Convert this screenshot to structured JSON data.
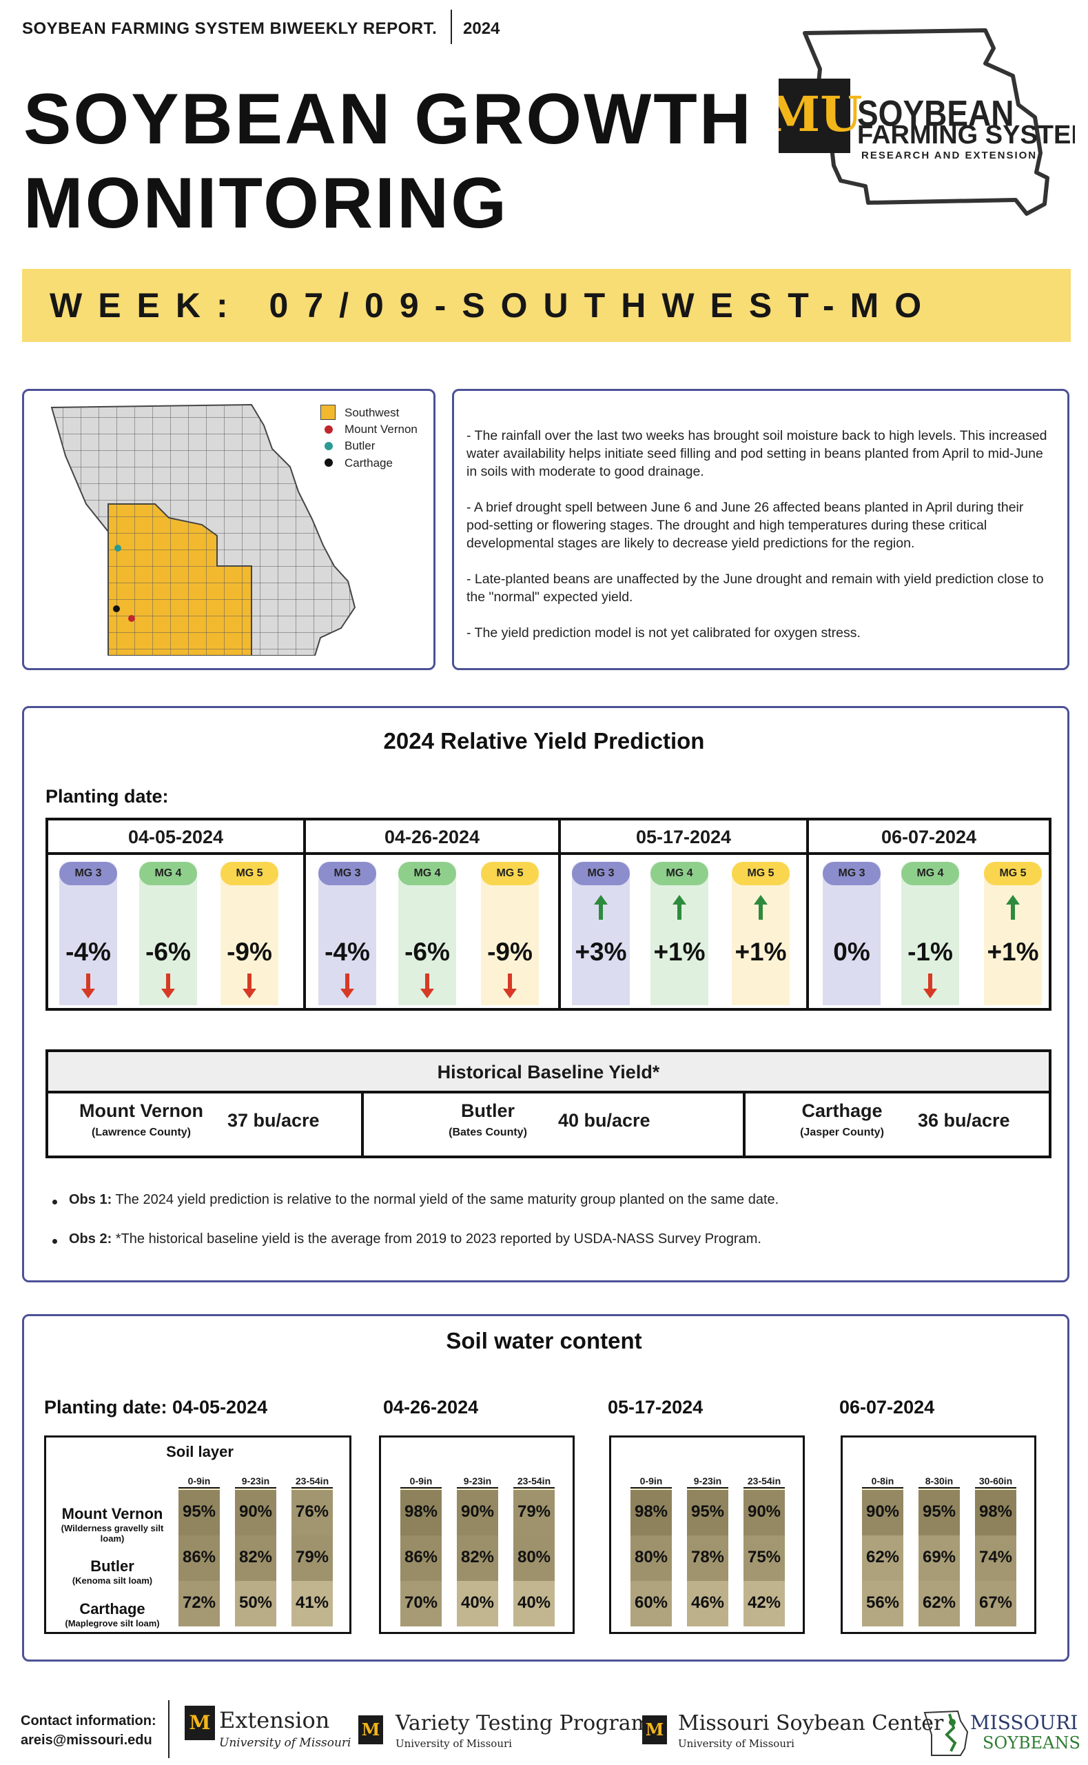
{
  "header": {
    "report_label": "SOYBEAN FARMING SYSTEM BIWEEKLY REPORT.",
    "year": "2024",
    "title_line1": "SOYBEAN GROWTH",
    "title_line2": "MONITORING",
    "logo_line1": "SOYBEAN",
    "logo_line2": "FARMING SYSTEMS",
    "logo_line3": "RESEARCH AND EXTENSION",
    "logo_mark": "MU"
  },
  "week": {
    "label": "WEEK: 07/09-SOUTHWEST-MO"
  },
  "map": {
    "legend": [
      {
        "label": "Southwest",
        "color": "#f2b92f",
        "kind": "square"
      },
      {
        "label": "Mount Vernon",
        "color": "#c0262b",
        "kind": "dot"
      },
      {
        "label": "Butler",
        "color": "#2a9a92",
        "kind": "dot"
      },
      {
        "label": "Carthage",
        "color": "#111111",
        "kind": "dot"
      }
    ]
  },
  "notes": [
    "- The rainfall over the last two weeks has brought soil moisture back to high levels. This increased water availability helps initiate seed filling and pod setting in beans planted from April to mid-June in soils with moderate to good drainage.",
    "- A brief drought spell between June 6 and June 26 affected beans planted in April during their pod-setting or flowering stages. The drought and high temperatures during these critical developmental stages are likely to decrease yield predictions for the region.",
    "- Late-planted beans are unaffected by the June drought and remain with yield prediction close to the \"normal\" expected yield.",
    "- The yield prediction model is not yet calibrated for oxygen stress."
  ],
  "yield": {
    "title": "2024 Relative Yield Prediction",
    "planting_label": "Planting date:",
    "dates": [
      {
        "date": "04-05-2024",
        "groups": [
          {
            "mg": "MG 3",
            "value": "-4%",
            "trend": "down"
          },
          {
            "mg": "MG 4",
            "value": "-6%",
            "trend": "down"
          },
          {
            "mg": "MG 5",
            "value": "-9%",
            "trend": "down"
          }
        ]
      },
      {
        "date": "04-26-2024",
        "groups": [
          {
            "mg": "MG 3",
            "value": "-4%",
            "trend": "down"
          },
          {
            "mg": "MG 4",
            "value": "-6%",
            "trend": "down"
          },
          {
            "mg": "MG 5",
            "value": "-9%",
            "trend": "down"
          }
        ]
      },
      {
        "date": "05-17-2024",
        "groups": [
          {
            "mg": "MG 3",
            "value": "+3%",
            "trend": "up"
          },
          {
            "mg": "MG 4",
            "value": "+1%",
            "trend": "up"
          },
          {
            "mg": "MG 5",
            "value": "+1%",
            "trend": "up"
          }
        ]
      },
      {
        "date": "06-07-2024",
        "groups": [
          {
            "mg": "MG 3",
            "value": "0%",
            "trend": "none"
          },
          {
            "mg": "MG 4",
            "value": "-1%",
            "trend": "down"
          },
          {
            "mg": "MG 5",
            "value": "+1%",
            "trend": "up"
          }
        ]
      }
    ],
    "colors": {
      "up": "#2e8b3d",
      "down": "#d63a25"
    }
  },
  "baseline": {
    "title": "Historical Baseline Yield*",
    "sites": [
      {
        "name": "Mount Vernon",
        "county": "(Lawrence County)",
        "value": "37 bu/acre"
      },
      {
        "name": "Butler",
        "county": "(Bates County)",
        "value": "40 bu/acre"
      },
      {
        "name": "Carthage",
        "county": "(Jasper County)",
        "value": "36 bu/acre"
      }
    ]
  },
  "observations": [
    {
      "label": "Obs 1:",
      "text": " The 2024 yield prediction is relative to the normal yield of the same maturity group planted on the same date."
    },
    {
      "label": "Obs 2:",
      "text": " *The historical baseline yield is the average from 2019 to 2023 reported by USDA-NASS Survey Program."
    }
  ],
  "soil": {
    "title": "Soil water content",
    "layer_label": "Soil layer",
    "sites": [
      {
        "name": "Mount Vernon",
        "soil": "(Wilderness gravelly silt loam)"
      },
      {
        "name": "Butler",
        "soil": "(Kenoma silt loam)"
      },
      {
        "name": "Carthage",
        "soil": "(Maplegrove silt loam)"
      }
    ],
    "tables": [
      {
        "date_label": "Planting date: 04-05-2024",
        "layers": [
          "0-9in",
          "9-23in",
          "23-54in"
        ],
        "values": [
          [
            "95%",
            "90%",
            "76%"
          ],
          [
            "86%",
            "82%",
            "79%"
          ],
          [
            "72%",
            "50%",
            "41%"
          ]
        ],
        "fill": [
          [
            0.95,
            0.9,
            0.76
          ],
          [
            0.86,
            0.82,
            0.79
          ],
          [
            0.72,
            0.5,
            0.41
          ]
        ]
      },
      {
        "date_label": "04-26-2024",
        "layers": [
          "0-9in",
          "9-23in",
          "23-54in"
        ],
        "values": [
          [
            "98%",
            "90%",
            "79%"
          ],
          [
            "86%",
            "82%",
            "80%"
          ],
          [
            "70%",
            "40%",
            "40%"
          ]
        ],
        "fill": [
          [
            0.98,
            0.9,
            0.79
          ],
          [
            0.86,
            0.82,
            0.8
          ],
          [
            0.7,
            0.4,
            0.4
          ]
        ]
      },
      {
        "date_label": "05-17-2024",
        "layers": [
          "0-9in",
          "9-23in",
          "23-54in"
        ],
        "values": [
          [
            "98%",
            "95%",
            "90%"
          ],
          [
            "80%",
            "78%",
            "75%"
          ],
          [
            "60%",
            "46%",
            "42%"
          ]
        ],
        "fill": [
          [
            0.98,
            0.95,
            0.9
          ],
          [
            0.8,
            0.78,
            0.75
          ],
          [
            0.6,
            0.46,
            0.42
          ]
        ]
      },
      {
        "date_label": "06-07-2024",
        "layers": [
          "0-8in",
          "8-30in",
          "30-60in"
        ],
        "values": [
          [
            "90%",
            "95%",
            "98%"
          ],
          [
            "62%",
            "69%",
            "74%"
          ],
          [
            "56%",
            "62%",
            "67%"
          ]
        ],
        "fill": [
          [
            0.9,
            0.95,
            0.98
          ],
          [
            0.62,
            0.69,
            0.74
          ],
          [
            0.56,
            0.62,
            0.67
          ]
        ]
      }
    ]
  },
  "footer": {
    "contact_label": "Contact information:",
    "contact_email": "areis@missouri.edu",
    "orgs": [
      {
        "name": "Extension",
        "sub": "University of Missouri"
      },
      {
        "name": "Variety Testing Program",
        "sub": "University of Missouri"
      },
      {
        "name": "Missouri Soybean Center",
        "sub": "University of Missouri"
      },
      {
        "name": "MISSOURI",
        "sub": "SOYBEANS"
      }
    ]
  }
}
